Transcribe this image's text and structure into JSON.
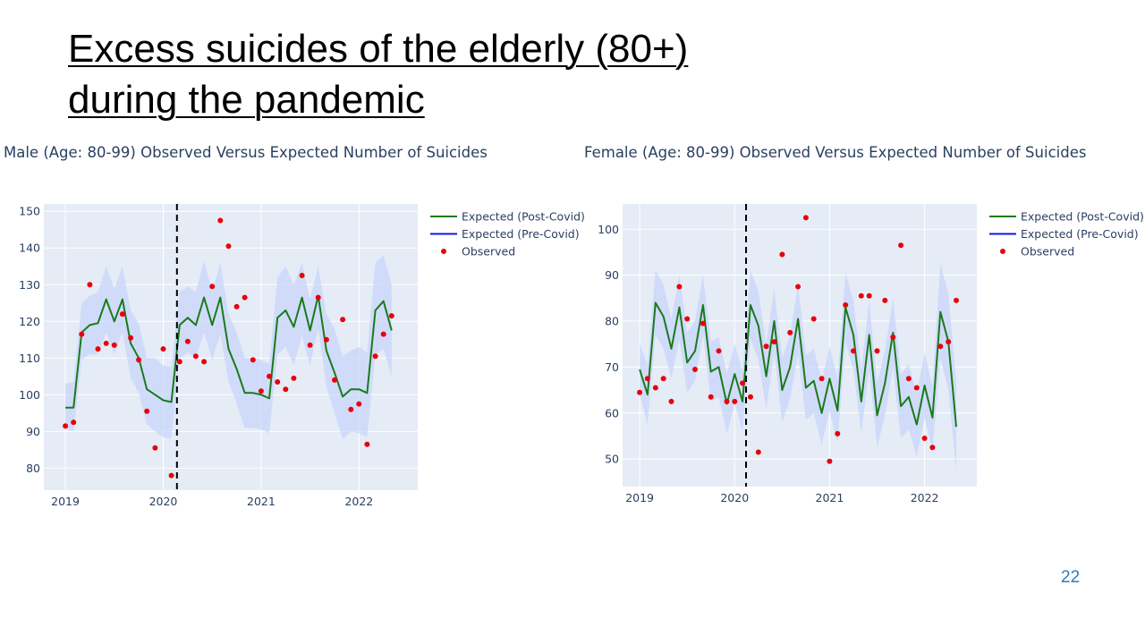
{
  "slide": {
    "title_line1": "Excess suicides of the elderly (80+)",
    "title_line2": "during the pandemic",
    "page_number": "22"
  },
  "colors": {
    "plot_bg": "#e5ecf6",
    "expected_post": "#1a7a1a",
    "expected_pre": "#1515e0",
    "observed": "#e8000b",
    "band": "#c8d6fb",
    "title_text": "#2a3f5f",
    "page_number": "#2f7db7"
  },
  "chart_data": [
    {
      "type": "line",
      "title": "Male (Age: 80-99) Observed Versus Expected Number of Suicides",
      "xlabel": "",
      "ylabel": "",
      "x_ticks": [
        2019,
        2020,
        2021,
        2022
      ],
      "y_ticks": [
        80,
        90,
        100,
        110,
        120,
        130,
        140,
        150
      ],
      "xlim": [
        2018.78,
        2022.6
      ],
      "ylim": [
        74,
        152
      ],
      "covid_line_x": 2020.14,
      "legend": {
        "position": "top-right",
        "entries": [
          "Expected (Post-Covid)",
          "Expected (Pre-Covid)",
          "Observed"
        ]
      },
      "expected_x": [
        2019.0,
        2019.083,
        2019.167,
        2019.25,
        2019.333,
        2019.417,
        2019.5,
        2019.583,
        2019.667,
        2019.75,
        2019.833,
        2019.917,
        2020.0,
        2020.083,
        2020.167,
        2020.25,
        2020.333,
        2020.417,
        2020.5,
        2020.583,
        2020.667,
        2020.75,
        2020.833,
        2020.917,
        2021.0,
        2021.083,
        2021.167,
        2021.25,
        2021.333,
        2021.417,
        2021.5,
        2021.583,
        2021.667,
        2021.75,
        2021.833,
        2021.917,
        2022.0,
        2022.083,
        2022.167,
        2022.25,
        2022.333
      ],
      "expected_y": [
        96.5,
        96.5,
        117,
        119,
        119.5,
        126,
        120,
        126,
        114,
        110,
        101.5,
        100,
        98.5,
        98,
        119,
        121,
        119,
        126.5,
        119,
        126.5,
        112.5,
        107,
        100.5,
        100.5,
        100,
        99,
        121,
        123,
        118.5,
        126.5,
        117.5,
        127,
        112,
        106,
        99.5,
        101.5,
        101.5,
        100.5,
        123,
        125.5,
        117.5
      ],
      "band_upper": [
        103,
        103.5,
        125,
        127,
        128,
        135,
        129,
        135,
        123,
        119.5,
        110,
        110,
        108,
        107.5,
        128,
        129.5,
        128,
        136.5,
        128,
        136,
        122,
        117,
        110,
        110,
        109.5,
        108.5,
        132,
        135,
        130,
        136,
        126,
        135,
        122,
        118,
        110.5,
        112,
        113,
        111.5,
        136,
        138,
        130
      ],
      "band_lower": [
        90.5,
        90,
        109.5,
        111,
        111,
        117,
        111,
        117,
        104.5,
        100.5,
        92,
        90,
        88.5,
        88,
        110,
        111.5,
        110,
        117,
        109.5,
        116.5,
        103.5,
        97.5,
        91,
        91,
        90.5,
        89.5,
        111,
        113,
        108,
        116,
        108,
        118,
        102,
        95,
        88,
        90,
        89.5,
        88.5,
        111,
        112.5,
        105
      ],
      "observed_x": [
        2019.0,
        2019.083,
        2019.167,
        2019.25,
        2019.333,
        2019.417,
        2019.5,
        2019.583,
        2019.667,
        2019.75,
        2019.833,
        2019.917,
        2020.0,
        2020.083,
        2020.167,
        2020.25,
        2020.333,
        2020.417,
        2020.5,
        2020.583,
        2020.667,
        2020.75,
        2020.833,
        2020.917,
        2021.0,
        2021.083,
        2021.167,
        2021.25,
        2021.333,
        2021.417,
        2021.5,
        2021.583,
        2021.667,
        2021.75,
        2021.833,
        2021.917,
        2022.0,
        2022.083,
        2022.167,
        2022.25,
        2022.333
      ],
      "observed_y": [
        91.5,
        92.5,
        116.5,
        130,
        112.5,
        114,
        113.5,
        122,
        115.5,
        109.5,
        95.5,
        85.5,
        112.5,
        78,
        109,
        114.5,
        110.5,
        109,
        129.5,
        147.5,
        140.5,
        124,
        126.5,
        109.5,
        101,
        105,
        103.5,
        101.5,
        104.5,
        132.5,
        113.5,
        126.5,
        115,
        104,
        120.5,
        96,
        97.5,
        86.5,
        110.5,
        116.5,
        121.5
      ]
    },
    {
      "type": "line",
      "title": "Female (Age: 80-99) Observed Versus Expected Number of Suicides",
      "xlabel": "",
      "ylabel": "",
      "x_ticks": [
        2019,
        2020,
        2021,
        2022
      ],
      "y_ticks": [
        50,
        60,
        70,
        80,
        90,
        100
      ],
      "xlim": [
        2018.82,
        2022.55
      ],
      "ylim": [
        44,
        105.5
      ],
      "covid_line_x": 2020.12,
      "legend": {
        "position": "top-right",
        "entries": [
          "Expected (Post-Covid)",
          "Expected (Pre-Covid)",
          "Observed"
        ]
      },
      "expected_x": [
        2019.0,
        2019.083,
        2019.167,
        2019.25,
        2019.333,
        2019.417,
        2019.5,
        2019.583,
        2019.667,
        2019.75,
        2019.833,
        2019.917,
        2020.0,
        2020.083,
        2020.167,
        2020.25,
        2020.333,
        2020.417,
        2020.5,
        2020.583,
        2020.667,
        2020.75,
        2020.833,
        2020.917,
        2021.0,
        2021.083,
        2021.167,
        2021.25,
        2021.333,
        2021.417,
        2021.5,
        2021.583,
        2021.667,
        2021.75,
        2021.833,
        2021.917,
        2022.0,
        2022.083,
        2022.167,
        2022.25,
        2022.333
      ],
      "expected_y": [
        69.5,
        64,
        84,
        81,
        74,
        83,
        71,
        73.5,
        83.5,
        69,
        70,
        62,
        68.5,
        62.5,
        83.5,
        79,
        68,
        80,
        65,
        70,
        80.5,
        65.5,
        67,
        60,
        67.5,
        60.5,
        83,
        77,
        62.5,
        77,
        59.5,
        66.5,
        77.5,
        61.5,
        63.5,
        57.5,
        66,
        59,
        82,
        75.5,
        57
      ],
      "band_upper": [
        75,
        70.5,
        91,
        88,
        80.5,
        90,
        77.5,
        80,
        90,
        75.5,
        76.5,
        68.5,
        75,
        69,
        91,
        86.5,
        75,
        87,
        72,
        77,
        88,
        72.5,
        74,
        67,
        74.5,
        67.5,
        90.5,
        84.5,
        69.5,
        84.5,
        66.5,
        73.5,
        85,
        68.5,
        70.5,
        64.5,
        73,
        66,
        92.5,
        86,
        67
      ],
      "band_lower": [
        64,
        57.5,
        77,
        74,
        67.5,
        76,
        64.5,
        67,
        77,
        62.5,
        63.5,
        55.5,
        62,
        56,
        76,
        71.5,
        61,
        73,
        58,
        63,
        73,
        58.5,
        60,
        53,
        60.5,
        53.5,
        75.5,
        69.5,
        55.5,
        69.5,
        52.5,
        59.5,
        70,
        54.5,
        56.5,
        50.5,
        59,
        52,
        72,
        65,
        47.5
      ],
      "observed_x": [
        2019.0,
        2019.083,
        2019.167,
        2019.25,
        2019.333,
        2019.417,
        2019.5,
        2019.583,
        2019.667,
        2019.75,
        2019.833,
        2019.917,
        2020.0,
        2020.083,
        2020.167,
        2020.25,
        2020.333,
        2020.417,
        2020.5,
        2020.583,
        2020.667,
        2020.75,
        2020.833,
        2020.917,
        2021.0,
        2021.083,
        2021.167,
        2021.25,
        2021.333,
        2021.417,
        2021.5,
        2021.583,
        2021.667,
        2021.75,
        2021.833,
        2021.917,
        2022.0,
        2022.083,
        2022.167,
        2022.25,
        2022.333
      ],
      "observed_y": [
        64.5,
        67.5,
        65.5,
        67.5,
        62.5,
        87.5,
        80.5,
        69.5,
        79.5,
        63.5,
        73.5,
        62.5,
        62.5,
        66.5,
        63.5,
        51.5,
        74.5,
        75.5,
        94.5,
        77.5,
        87.5,
        102.5,
        80.5,
        67.5,
        49.5,
        55.5,
        83.5,
        73.5,
        85.5,
        85.5,
        73.5,
        84.5,
        76.5,
        96.5,
        67.5,
        65.5,
        54.5,
        52.5,
        74.5,
        75.5,
        84.5
      ]
    }
  ]
}
